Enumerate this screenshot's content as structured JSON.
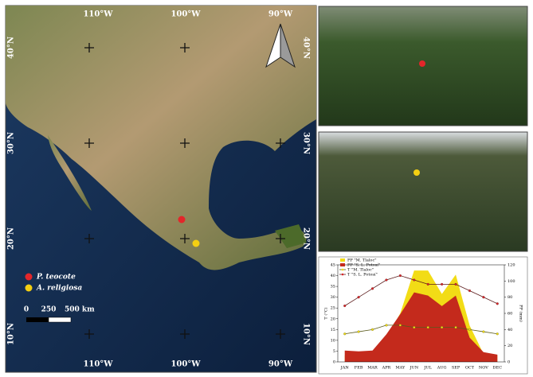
{
  "map": {
    "top_labels": [
      "110°W",
      "100°W",
      "90°W"
    ],
    "bottom_labels": [
      "110°W",
      "100°W",
      "90°W"
    ],
    "left_labels": [
      "40°N",
      "30°N",
      "20°N",
      "10°N"
    ],
    "right_labels": [
      "40°N",
      "30°N",
      "20°N",
      "10°N"
    ],
    "legend": [
      {
        "label": "P. teocote",
        "color": "#e3262a"
      },
      {
        "label": "A. religiosa",
        "color": "#f4cf12"
      }
    ],
    "scale_labels": [
      "0",
      "250",
      "500 km"
    ]
  },
  "chart_data": {
    "type": "climograph",
    "categories": [
      "JAN",
      "FEB",
      "MAR",
      "APR",
      "MAY",
      "JUN",
      "JUL",
      "AUG",
      "SEP",
      "OCT",
      "NOV",
      "DEC"
    ],
    "y_label": "T (°C)",
    "y2_label": "PP (mm)",
    "ylim": [
      0,
      45
    ],
    "yticks": [
      0,
      5,
      10,
      15,
      20,
      25,
      30,
      35,
      40,
      45
    ],
    "y2lim": [
      0,
      120
    ],
    "y2ticks": [
      0,
      20,
      40,
      60,
      80,
      100,
      120
    ],
    "series": [
      {
        "name": "PP \"M. Tlaloc\"",
        "kind": "area",
        "axis": "y2",
        "color": "#f2dc16",
        "values": [
          8,
          8,
          10,
          30,
          60,
          113,
          113,
          84,
          108,
          45,
          10,
          8
        ]
      },
      {
        "name": "PP \"S. L. Potosí\"",
        "kind": "area",
        "axis": "y2",
        "color": "#c42a1c",
        "values": [
          14,
          13,
          14,
          34,
          59,
          86,
          82,
          69,
          82,
          30,
          12,
          9
        ]
      },
      {
        "name": "T \"M. Tlaloc\"",
        "kind": "line",
        "color": "#f2dc16",
        "line_color": "#5a5a1a",
        "values": [
          13,
          14,
          15,
          17,
          17,
          16,
          16,
          16,
          16,
          15,
          14,
          13
        ]
      },
      {
        "name": "T \"S. L. Potosí\"",
        "kind": "line",
        "color": "#d8262a",
        "line_color": "#5a1a1a",
        "values": [
          26,
          30,
          34,
          38,
          40,
          38,
          36,
          36,
          36,
          33,
          30,
          27
        ]
      }
    ]
  }
}
